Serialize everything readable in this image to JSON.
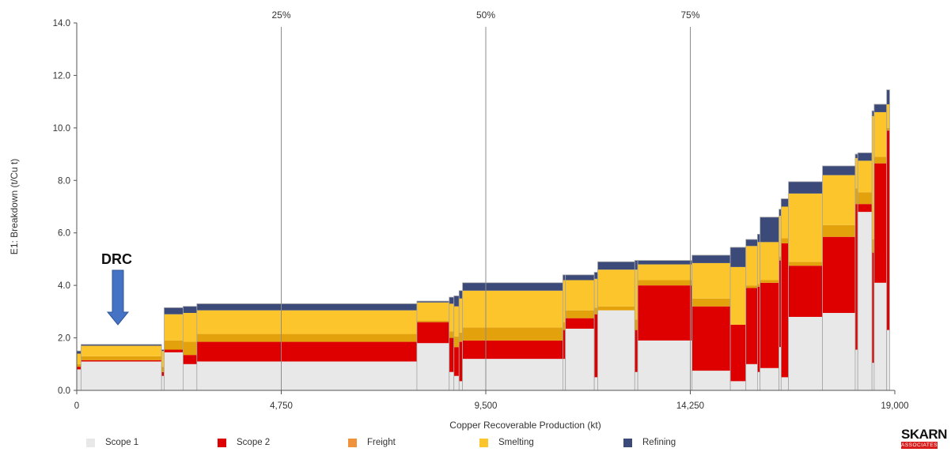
{
  "chart_data": {
    "type": "bar",
    "subtype": "stacked-variable-width cost curve",
    "xlabel": "Copper Recoverable Production (kt)",
    "ylabel": "E1: Breakdown (t/Cu t)",
    "xlim": [
      0,
      19000
    ],
    "ylim": [
      0,
      14
    ],
    "x_ticks": [
      0,
      4750,
      9500,
      14250,
      19000
    ],
    "x_tick_labels": [
      "0",
      "4,750",
      "9,500",
      "14,250",
      "19,000"
    ],
    "y_ticks": [
      0,
      2,
      4,
      6,
      8,
      10,
      12,
      14
    ],
    "y_tick_labels": [
      "0.0",
      "2.0",
      "4.0",
      "6.0",
      "8.0",
      "10.0",
      "12.0",
      "14.0"
    ],
    "grid": false,
    "legend_position": "bottom",
    "series_names": [
      "Scope 1",
      "Scope 2",
      "Freight",
      "Smelting",
      "Refining"
    ],
    "colors": {
      "Scope 1": "#e8e8e8",
      "Scope 2": "#de0000",
      "Freight": "#f0913c",
      "Smelting": "#fdc52c",
      "SmeltingDark": "#e3a20c",
      "Refining": "#3c4a7a"
    },
    "percentile_lines": [
      {
        "x": 4750,
        "label": "25%"
      },
      {
        "x": 9500,
        "label": "50%"
      },
      {
        "x": 14250,
        "label": "75%"
      }
    ],
    "bars": [
      {
        "x0": 0,
        "x1": 100,
        "s1": 0.8,
        "s2": 0.1,
        "fr": 0.1,
        "sm": 0.4,
        "rf": 0.1
      },
      {
        "x0": 100,
        "x1": 1970,
        "s1": 1.1,
        "s2": 0.05,
        "fr": 0.15,
        "sm": 0.4,
        "rf": 0.05
      },
      {
        "x0": 1970,
        "x1": 2030,
        "s1": 0.55,
        "s2": 0.15,
        "fr": 0.2,
        "sm": 0.6,
        "rf": 0.05
      },
      {
        "x0": 2030,
        "x1": 2470,
        "s1": 1.45,
        "s2": 0.1,
        "fr": 0.35,
        "sm": 1.0,
        "rf": 0.25
      },
      {
        "x0": 2470,
        "x1": 2790,
        "s1": 1.0,
        "s2": 0.35,
        "fr": 0.5,
        "sm": 1.1,
        "rf": 0.25
      },
      {
        "x0": 2790,
        "x1": 7900,
        "s1": 1.1,
        "s2": 0.75,
        "fr": 0.3,
        "sm": 0.9,
        "rf": 0.25
      },
      {
        "x0": 7900,
        "x1": 8650,
        "s1": 1.8,
        "s2": 0.8,
        "fr": 0.05,
        "sm": 0.7,
        "rf": 0.05
      },
      {
        "x0": 8650,
        "x1": 8760,
        "s1": 0.7,
        "s2": 1.3,
        "fr": 0.25,
        "sm": 1.05,
        "rf": 0.25
      },
      {
        "x0": 8760,
        "x1": 8880,
        "s1": 0.55,
        "s2": 1.1,
        "fr": 0.4,
        "sm": 1.15,
        "rf": 0.4
      },
      {
        "x0": 8880,
        "x1": 8960,
        "s1": 0.35,
        "s2": 1.5,
        "fr": 0.35,
        "sm": 1.3,
        "rf": 0.3
      },
      {
        "x0": 8960,
        "x1": 11290,
        "s1": 1.2,
        "s2": 0.7,
        "fr": 0.5,
        "sm": 1.4,
        "rf": 0.3
      },
      {
        "x0": 11290,
        "x1": 11350,
        "s1": 1.2,
        "s2": 1.1,
        "fr": 0.3,
        "sm": 1.6,
        "rf": 0.2
      },
      {
        "x0": 11350,
        "x1": 12020,
        "s1": 2.35,
        "s2": 0.4,
        "fr": 0.3,
        "sm": 1.15,
        "rf": 0.2
      },
      {
        "x0": 12020,
        "x1": 12100,
        "s1": 0.5,
        "s2": 2.4,
        "fr": 0.25,
        "sm": 1.1,
        "rf": 0.25
      },
      {
        "x0": 12100,
        "x1": 12960,
        "s1": 3.05,
        "s2": 0.0,
        "fr": 0.15,
        "sm": 1.4,
        "rf": 0.3
      },
      {
        "x0": 12960,
        "x1": 13030,
        "s1": 0.7,
        "s2": 1.6,
        "fr": 0.4,
        "sm": 1.9,
        "rf": 0.35
      },
      {
        "x0": 13030,
        "x1": 14290,
        "s1": 1.9,
        "s2": 2.1,
        "fr": 0.2,
        "sm": 0.6,
        "rf": 0.15
      },
      {
        "x0": 14290,
        "x1": 15180,
        "s1": 0.75,
        "s2": 2.45,
        "fr": 0.3,
        "sm": 1.35,
        "rf": 0.3
      },
      {
        "x0": 15180,
        "x1": 15540,
        "s1": 0.35,
        "s2": 2.15,
        "fr": 0.0,
        "sm": 2.2,
        "rf": 0.75
      },
      {
        "x0": 15540,
        "x1": 15810,
        "s1": 1.0,
        "s2": 2.9,
        "fr": 0.1,
        "sm": 1.5,
        "rf": 0.25
      },
      {
        "x0": 15810,
        "x1": 15870,
        "s1": 0.7,
        "s2": 3.25,
        "fr": 0.1,
        "sm": 1.6,
        "rf": 0.3
      },
      {
        "x0": 15870,
        "x1": 16310,
        "s1": 0.85,
        "s2": 3.25,
        "fr": 0.1,
        "sm": 1.45,
        "rf": 0.95
      },
      {
        "x0": 16310,
        "x1": 16360,
        "s1": 1.65,
        "s2": 3.3,
        "fr": 0.15,
        "sm": 1.55,
        "rf": 0.25
      },
      {
        "x0": 16360,
        "x1": 16530,
        "s1": 0.5,
        "s2": 5.1,
        "fr": 0.2,
        "sm": 1.2,
        "rf": 0.3
      },
      {
        "x0": 16530,
        "x1": 17320,
        "s1": 2.8,
        "s2": 1.95,
        "fr": 0.15,
        "sm": 2.6,
        "rf": 0.45
      },
      {
        "x0": 17320,
        "x1": 18080,
        "s1": 2.95,
        "s2": 2.9,
        "fr": 0.45,
        "sm": 1.9,
        "rf": 0.35
      },
      {
        "x0": 18080,
        "x1": 18140,
        "s1": 1.55,
        "s2": 5.55,
        "fr": 0.6,
        "sm": 1.15,
        "rf": 0.15
      },
      {
        "x0": 18140,
        "x1": 18470,
        "s1": 6.8,
        "s2": 0.3,
        "fr": 0.45,
        "sm": 1.2,
        "rf": 0.3
      },
      {
        "x0": 18470,
        "x1": 18520,
        "s1": 1.05,
        "s2": 4.2,
        "fr": 0.5,
        "sm": 4.7,
        "rf": 0.2
      },
      {
        "x0": 18520,
        "x1": 18810,
        "s1": 4.1,
        "s2": 4.55,
        "fr": 0.25,
        "sm": 1.7,
        "rf": 0.3
      },
      {
        "x0": 18810,
        "x1": 18880,
        "s1": 2.3,
        "s2": 7.6,
        "fr": 0.1,
        "sm": 0.9,
        "rf": 0.55
      }
    ]
  },
  "annotation": {
    "label": "DRC"
  },
  "legend": {
    "items": [
      {
        "label": "Scope 1",
        "color": "#e8e8e8"
      },
      {
        "label": "Scope 2",
        "color": "#de0000"
      },
      {
        "label": "Freight",
        "color": "#f0913c"
      },
      {
        "label": "Smelting",
        "color": "#fdc52c"
      },
      {
        "label": "Refining",
        "color": "#3c4a7a"
      }
    ]
  },
  "logo": {
    "top_text": "SKARN",
    "bottom_text": "ASSOCIATES"
  }
}
